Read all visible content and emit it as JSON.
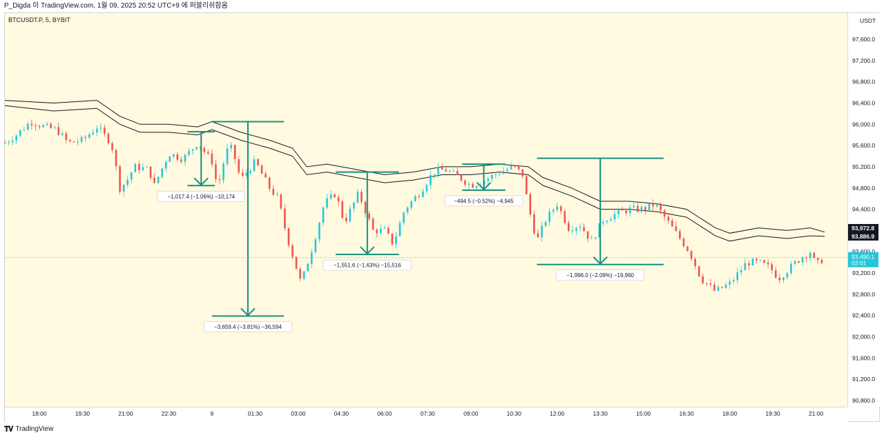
{
  "header": {
    "text": "P_Digda 이 TradingView.com, 1월 09, 2025 20:52 UTC+9 에 퍼블리쉬함옴"
  },
  "chart": {
    "symbol": "BTCUSDT.P, 5, BYBIT",
    "currency": "USDT"
  },
  "footer": {
    "brand": "TradingView",
    "logo": "tradingview-logo"
  },
  "colors": {
    "up": "#26c6da",
    "down": "#ef5350",
    "measure": "#138f7c",
    "band": "#131722",
    "background": "#fffae0"
  },
  "chart_data": {
    "type": "candlestick",
    "title": "",
    "y_ticks": [
      97600,
      97200,
      96800,
      96400,
      96000,
      95600,
      95200,
      94800,
      94400,
      94000,
      93600,
      93200,
      92800,
      92400,
      92000,
      91600,
      91200,
      90800
    ],
    "y_tick_labels": [
      "97,600.0",
      "97,200.0",
      "96,800.0",
      "96,400.0",
      "96,000.0",
      "95,600.0",
      "95,200.0",
      "94,800.0",
      "94,400.0",
      "94,000.0",
      "93,600.0",
      "93,200.0",
      "92,800.0",
      "92,400.0",
      "92,000.0",
      "91,600.0",
      "91,200.0",
      "90,800.0"
    ],
    "ylim": [
      90650,
      97900
    ],
    "x_ticks": [
      "18:00",
      "19:30",
      "21:00",
      "22:30",
      "9",
      "01:30",
      "03:00",
      "04:30",
      "06:00",
      "07:30",
      "09:00",
      "10:30",
      "12:00",
      "13:30",
      "15:00",
      "16:30",
      "18:00",
      "19:30",
      "21:00"
    ],
    "x_hours": [
      0,
      1.5,
      3,
      4.5,
      6,
      7.5,
      9,
      10.5,
      12,
      13.5,
      15,
      16.5,
      18,
      19.5,
      21,
      22.5,
      24,
      25.5,
      27
    ],
    "price_tags": [
      {
        "label": "93,972.8",
        "value": 93972.8,
        "style": "dark"
      },
      {
        "label": "93,886.9",
        "value": 93886.9,
        "style": "dark"
      },
      {
        "label": "93,490.1",
        "sub": "02:01",
        "value": 93490.1,
        "style": "current"
      }
    ],
    "price_path": [
      [
        -1.2,
        95650
      ],
      [
        -0.8,
        95800
      ],
      [
        -0.3,
        96050
      ],
      [
        0.2,
        95950
      ],
      [
        0.6,
        95900
      ],
      [
        1.0,
        95650
      ],
      [
        1.5,
        95700
      ],
      [
        2.0,
        95950
      ],
      [
        2.5,
        95650
      ],
      [
        2.8,
        94800
      ],
      [
        3.0,
        94900
      ],
      [
        3.3,
        95200
      ],
      [
        3.8,
        95150
      ],
      [
        4.0,
        94850
      ],
      [
        4.5,
        95450
      ],
      [
        5.0,
        95350
      ],
      [
        5.5,
        95650
      ],
      [
        6.0,
        95300
      ],
      [
        6.2,
        94800
      ],
      [
        6.5,
        95500
      ],
      [
        6.7,
        95550
      ],
      [
        7.0,
        94950
      ],
      [
        7.5,
        95300
      ],
      [
        8.0,
        94800
      ],
      [
        8.3,
        94600
      ],
      [
        8.6,
        93900
      ],
      [
        9.1,
        93000
      ],
      [
        9.5,
        93700
      ],
      [
        9.9,
        94500
      ],
      [
        10.3,
        94700
      ],
      [
        10.6,
        94150
      ],
      [
        11.1,
        94700
      ],
      [
        11.6,
        94000
      ],
      [
        12.0,
        94000
      ],
      [
        12.3,
        93750
      ],
      [
        12.7,
        94400
      ],
      [
        13.2,
        94700
      ],
      [
        13.7,
        95100
      ],
      [
        14.1,
        95150
      ],
      [
        14.6,
        95000
      ],
      [
        15.0,
        94850
      ],
      [
        15.5,
        94950
      ],
      [
        16.0,
        95100
      ],
      [
        16.5,
        95200
      ],
      [
        16.8,
        95050
      ],
      [
        17.0,
        94450
      ],
      [
        17.3,
        93800
      ],
      [
        17.6,
        94200
      ],
      [
        18.0,
        94500
      ],
      [
        18.4,
        94050
      ],
      [
        18.8,
        94100
      ],
      [
        19.2,
        93800
      ],
      [
        19.6,
        94200
      ],
      [
        20.0,
        94300
      ],
      [
        20.5,
        94400
      ],
      [
        21.0,
        94400
      ],
      [
        21.4,
        94500
      ],
      [
        21.8,
        94200
      ],
      [
        22.2,
        93900
      ],
      [
        22.6,
        93600
      ],
      [
        23.0,
        93100
      ],
      [
        23.5,
        92850
      ],
      [
        24.0,
        93000
      ],
      [
        24.3,
        93200
      ],
      [
        24.6,
        93400
      ],
      [
        25.0,
        93400
      ],
      [
        25.4,
        93300
      ],
      [
        25.7,
        93100
      ],
      [
        26.1,
        93300
      ],
      [
        26.5,
        93500
      ],
      [
        26.8,
        93600
      ],
      [
        27.0,
        93350
      ],
      [
        27.3,
        93490
      ]
    ],
    "band_upper": [
      [
        -1.2,
        96450
      ],
      [
        0.5,
        96400
      ],
      [
        2.0,
        96450
      ],
      [
        2.8,
        96150
      ],
      [
        3.5,
        96000
      ],
      [
        4.5,
        96000
      ],
      [
        5.5,
        95950
      ],
      [
        6.0,
        96050
      ],
      [
        7.0,
        95850
      ],
      [
        8.0,
        95700
      ],
      [
        8.8,
        95550
      ],
      [
        9.3,
        95200
      ],
      [
        10.0,
        95250
      ],
      [
        11.0,
        95150
      ],
      [
        12.0,
        95050
      ],
      [
        13.0,
        95100
      ],
      [
        14.0,
        95200
      ],
      [
        15.0,
        95200
      ],
      [
        16.0,
        95250
      ],
      [
        17.0,
        95200
      ],
      [
        17.5,
        95000
      ],
      [
        18.5,
        94800
      ],
      [
        19.5,
        94550
      ],
      [
        20.5,
        94550
      ],
      [
        21.5,
        94500
      ],
      [
        22.5,
        94400
      ],
      [
        23.5,
        94050
      ],
      [
        24.0,
        93950
      ],
      [
        25.0,
        94050
      ],
      [
        26.0,
        94000
      ],
      [
        26.8,
        94050
      ],
      [
        27.3,
        93970
      ]
    ],
    "band_lower": [
      [
        -1.2,
        96350
      ],
      [
        0.5,
        96250
      ],
      [
        2.0,
        96300
      ],
      [
        2.8,
        96000
      ],
      [
        3.5,
        95850
      ],
      [
        4.5,
        95850
      ],
      [
        5.5,
        95800
      ],
      [
        6.0,
        95900
      ],
      [
        7.0,
        95700
      ],
      [
        8.0,
        95550
      ],
      [
        8.8,
        95400
      ],
      [
        9.3,
        95050
      ],
      [
        10.0,
        95100
      ],
      [
        11.0,
        95000
      ],
      [
        12.0,
        94900
      ],
      [
        13.0,
        94950
      ],
      [
        14.0,
        95050
      ],
      [
        15.0,
        95050
      ],
      [
        16.0,
        95100
      ],
      [
        17.0,
        95050
      ],
      [
        17.5,
        94850
      ],
      [
        18.5,
        94650
      ],
      [
        19.5,
        94400
      ],
      [
        20.5,
        94400
      ],
      [
        21.5,
        94350
      ],
      [
        22.5,
        94250
      ],
      [
        23.5,
        93900
      ],
      [
        24.0,
        93800
      ],
      [
        25.0,
        93900
      ],
      [
        26.0,
        93850
      ],
      [
        26.8,
        93900
      ],
      [
        27.3,
        93890
      ]
    ],
    "measurements": [
      {
        "label": "−1,017.4 (−1.06%) −10,174",
        "x1": 5.15,
        "x2": 6.1,
        "top": 95860,
        "bottom": 94845,
        "value": -1017.4
      },
      {
        "label": "−3,659.4 (−3.81%) −36,594",
        "x1": 6.0,
        "x2": 8.5,
        "top": 96050,
        "bottom": 92390,
        "value": -3659.4
      },
      {
        "label": "−1,551.6 (−1.63%) −15,516",
        "x1": 10.3,
        "x2": 12.5,
        "top": 95100,
        "bottom": 93550,
        "value": -1551.6
      },
      {
        "label": "−494.5 (−0.52%) −4,945",
        "x1": 14.7,
        "x2": 16.2,
        "top": 95250,
        "bottom": 94760,
        "value": -494.5
      },
      {
        "label": "−1,996.0 (−2.09%) −19,960",
        "x1": 17.3,
        "x2": 21.7,
        "top": 95360,
        "bottom": 93360,
        "value": -1996.0
      }
    ]
  }
}
